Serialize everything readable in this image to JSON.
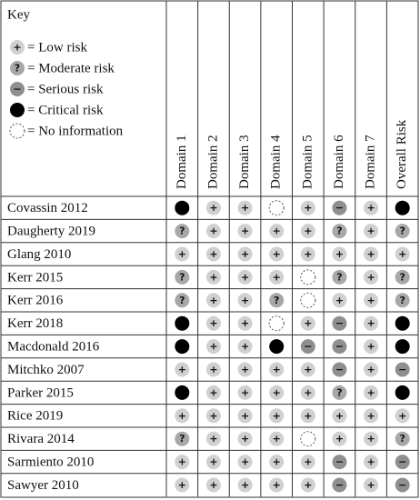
{
  "key": {
    "title": "Key",
    "items": [
      {
        "symbol": "+",
        "label": "= Low risk"
      },
      {
        "symbol": "?",
        "label": "= Moderate risk"
      },
      {
        "symbol": "−",
        "label": "= Serious risk"
      },
      {
        "label": "= Critical risk"
      },
      {
        "label": "= No information"
      }
    ]
  },
  "table": {
    "columns": [
      "Domain 1",
      "Domain 2",
      "Domain 3",
      "Domain 4",
      "Domain 5",
      "Domain 6",
      "Domain 7",
      "Overall Risk"
    ],
    "rows": [
      {
        "study": "Covassin 2012",
        "ratings": [
          "Critical risk",
          "Low risk",
          "Low risk",
          "No information",
          "Low risk",
          "Serious risk",
          "Low risk",
          "Critical risk"
        ]
      },
      {
        "study": "Daugherty 2019",
        "ratings": [
          "Moderate risk",
          "Low risk",
          "Low risk",
          "Low risk",
          "Low risk",
          "Moderate risk",
          "Low risk",
          "Moderate risk"
        ]
      },
      {
        "study": "Glang 2010",
        "ratings": [
          "Low risk",
          "Low risk",
          "Low risk",
          "Low risk",
          "Low risk",
          "Low risk",
          "Low risk",
          "Low risk"
        ]
      },
      {
        "study": "Kerr 2015",
        "ratings": [
          "Moderate risk",
          "Low risk",
          "Low risk",
          "Low risk",
          "No information",
          "Moderate risk",
          "Low risk",
          "Moderate risk"
        ]
      },
      {
        "study": "Kerr 2016",
        "ratings": [
          "Moderate risk",
          "Low risk",
          "Low risk",
          "Moderate risk",
          "No information",
          "Low risk",
          "Low risk",
          "Moderate risk"
        ]
      },
      {
        "study": "Kerr 2018",
        "ratings": [
          "Critical risk",
          "Low risk",
          "Low risk",
          "No information",
          "Low risk",
          "Serious risk",
          "Low risk",
          "Critical risk"
        ]
      },
      {
        "study": "Macdonald 2016",
        "ratings": [
          "Critical risk",
          "Low risk",
          "Low risk",
          "Critical risk",
          "Serious risk",
          "Serious risk",
          "Low risk",
          "Critical risk"
        ]
      },
      {
        "study": "Mitchko 2007",
        "ratings": [
          "Low risk",
          "Low risk",
          "Low risk",
          "Low risk",
          "Low risk",
          "Serious risk",
          "Low risk",
          "Serious risk"
        ]
      },
      {
        "study": "Parker 2015",
        "ratings": [
          "Critical risk",
          "Low risk",
          "Low risk",
          "Low risk",
          "Low risk",
          "Moderate risk",
          "Low risk",
          "Critical risk"
        ]
      },
      {
        "study": "Rice 2019",
        "ratings": [
          "Low risk",
          "Low risk",
          "Low risk",
          "Low risk",
          "Low risk",
          "Low risk",
          "Low risk",
          "Low risk"
        ]
      },
      {
        "study": "Rivara 2014",
        "ratings": [
          "Moderate risk",
          "Low risk",
          "Low risk",
          "Low risk",
          "No information",
          "Low risk",
          "Low risk",
          "Moderate risk"
        ]
      },
      {
        "study": "Sarmiento 2010",
        "ratings": [
          "Low risk",
          "Low risk",
          "Low risk",
          "Low risk",
          "Low risk",
          "Serious risk",
          "Low risk",
          "Serious risk"
        ]
      },
      {
        "study": "Sawyer 2010",
        "ratings": [
          "Low risk",
          "Low risk",
          "Low risk",
          "Low risk",
          "Low risk",
          "Serious risk",
          "Low risk",
          "Serious risk"
        ]
      }
    ]
  }
}
